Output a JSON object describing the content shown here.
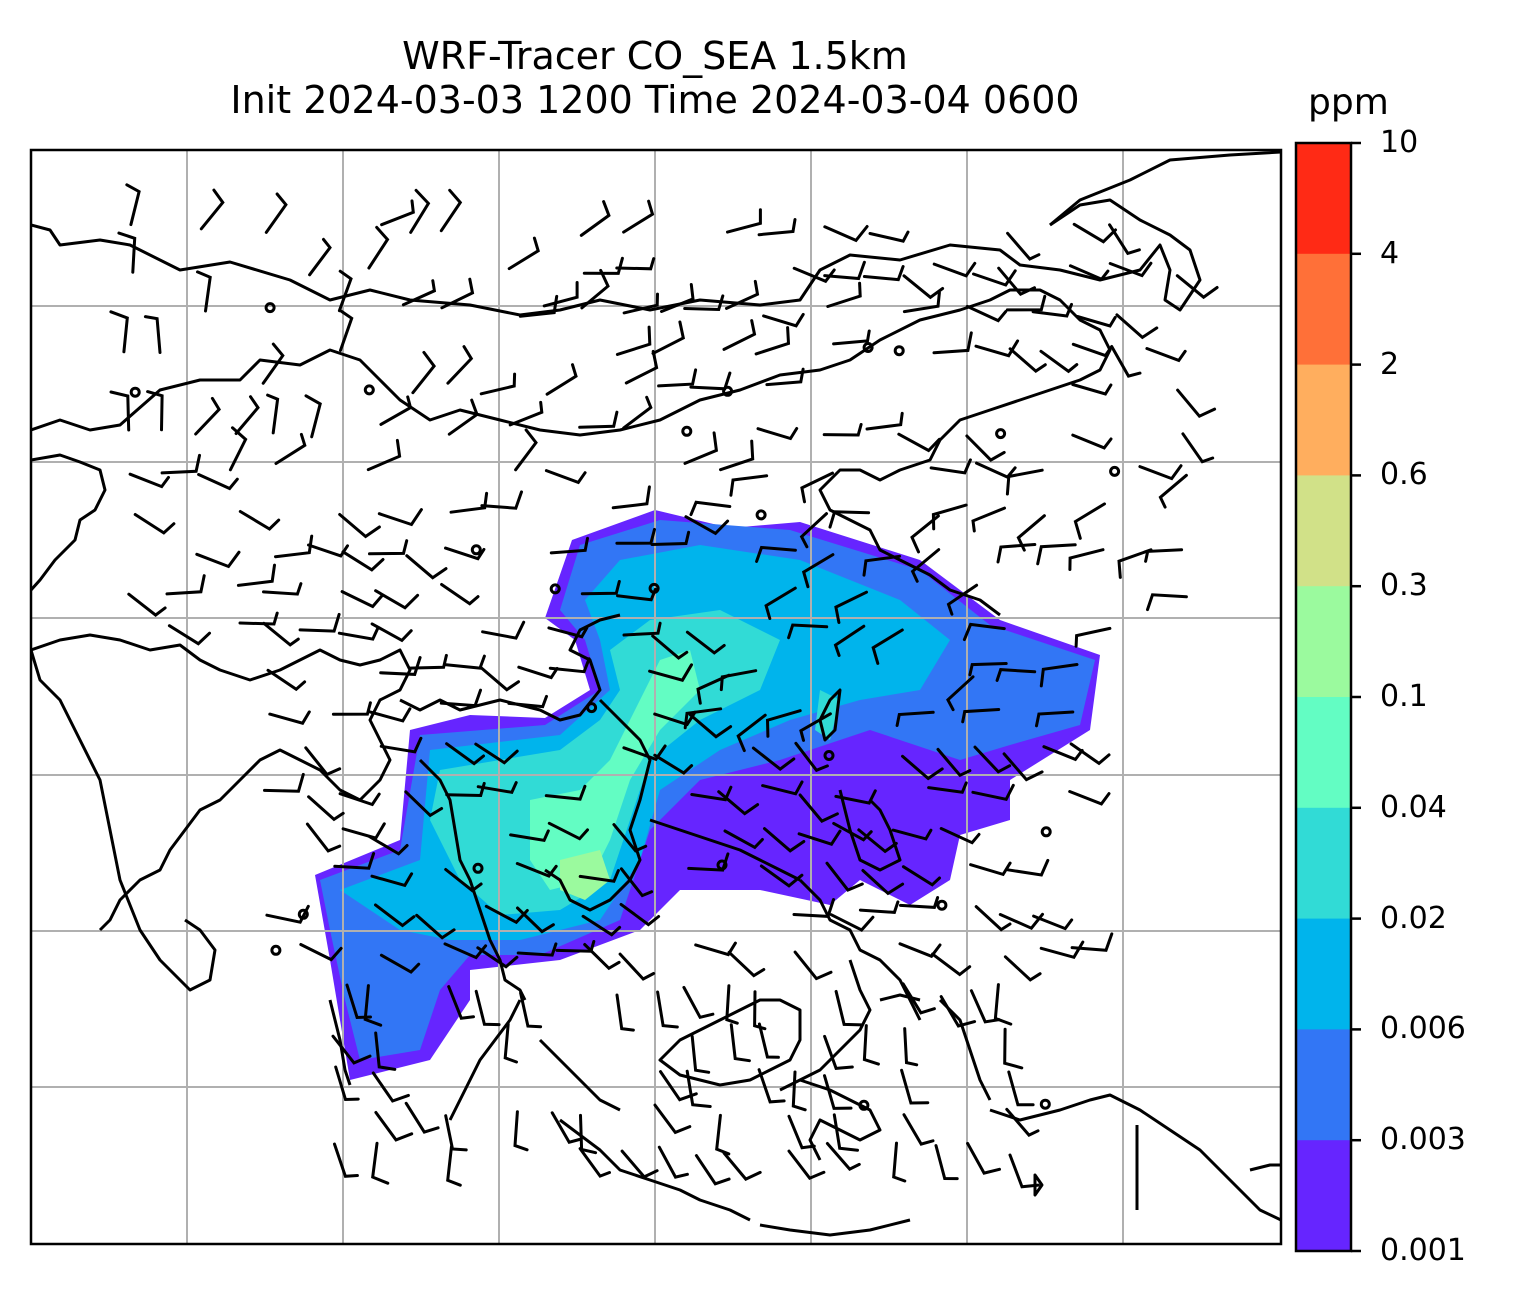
{
  "title": {
    "line1": "WRF-Tracer CO_SEA 1.5km",
    "line2": "Init 2024-03-03 1200 Time 2024-03-04 0600"
  },
  "colorbar": {
    "unit": "ppm",
    "ticks": [
      "10",
      "4",
      "2",
      "0.6",
      "0.3",
      "0.1",
      "0.04",
      "0.02",
      "0.006",
      "0.003",
      "0.001"
    ],
    "colors": [
      "#ff2a15",
      "#ff7038",
      "#ffae5e",
      "#d1e188",
      "#9bfa9e",
      "#63fdc3",
      "#31dbd6",
      "#00b4ec",
      "#3276f5",
      "#6625ff"
    ]
  },
  "map": {
    "gridlines": true,
    "features": [
      "coastlines",
      "country-borders",
      "wind-barbs",
      "calm-circles",
      "tracer-plume"
    ]
  }
}
